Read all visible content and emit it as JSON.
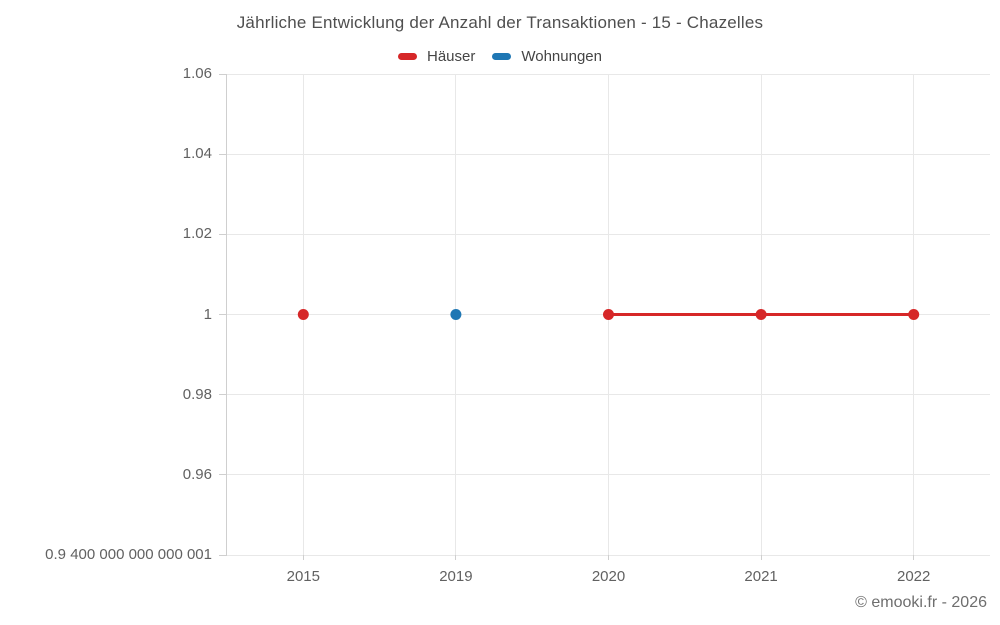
{
  "title": "Jährliche Entwicklung der Anzahl der Transaktionen - 15 - Chazelles",
  "attribution": "© emooki.fr - 2026",
  "legend": {
    "items": [
      {
        "label": "Häuser",
        "color": "#d62728"
      },
      {
        "label": "Wohnungen",
        "color": "#1f77b4"
      }
    ]
  },
  "chart_data": {
    "type": "line",
    "title": "Jährliche Entwicklung der Anzahl der Transaktionen - 15 - Chazelles",
    "categories": [
      "2015",
      "2019",
      "2020",
      "2021",
      "2022"
    ],
    "series": [
      {
        "name": "Häuser",
        "color": "#d62728",
        "values": [
          1,
          null,
          1,
          1,
          1
        ]
      },
      {
        "name": "Wohnungen",
        "color": "#1f77b4",
        "values": [
          null,
          1,
          null,
          null,
          null
        ]
      }
    ],
    "y_ticks": [
      {
        "label": "1.06",
        "value": 1.06
      },
      {
        "label": "1.04",
        "value": 1.04
      },
      {
        "label": "1.02",
        "value": 1.02
      },
      {
        "label": "1",
        "value": 1
      },
      {
        "label": "0.98",
        "value": 0.98
      },
      {
        "label": "0.96",
        "value": 0.96
      },
      {
        "label": "0.9 400 000 000 000 001",
        "value": 0.9400000000000001
      }
    ],
    "ylim": [
      0.9400000000000001,
      1.06
    ],
    "xlabel": "",
    "ylabel": "",
    "grid": true,
    "legend_position": "top"
  },
  "style": {
    "grid_color": "#e8e8e8",
    "axis_color": "#cfcfcf",
    "tick_label_color": "#616161",
    "title_color": "#4f4f4f",
    "background": "#ffffff"
  }
}
